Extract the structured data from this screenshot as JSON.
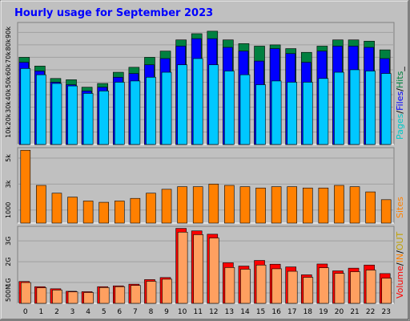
{
  "chart_data": {
    "type": "bar",
    "title": "Hourly usage for September 2023",
    "categories": [
      "0",
      "1",
      "2",
      "3",
      "4",
      "5",
      "6",
      "7",
      "8",
      "9",
      "10",
      "11",
      "12",
      "13",
      "14",
      "15",
      "16",
      "17",
      "18",
      "19",
      "20",
      "21",
      "22",
      "23"
    ],
    "panels": [
      {
        "id": "top",
        "yticks": [
          "10k",
          "20k",
          "30k",
          "40k",
          "50k",
          "60k",
          "70k",
          "80k",
          "90k"
        ],
        "ylim": [
          0,
          98000
        ],
        "legend": [
          "Pages",
          "/",
          "Files",
          "/",
          "Hits",
          "_"
        ],
        "series": [
          {
            "name": "Hits",
            "values": [
              70000,
              63000,
              53000,
              52000,
              46000,
              49000,
              58000,
              62000,
              70000,
              75000,
              84000,
              89000,
              91000,
              84000,
              81000,
              79000,
              80000,
              77000,
              74000,
              79000,
              84000,
              84000,
              83000,
              76000
            ]
          },
          {
            "name": "Files",
            "values": [
              66000,
              59000,
              50000,
              48000,
              43000,
              46000,
              54000,
              57000,
              64000,
              69000,
              79000,
              85000,
              85000,
              78000,
              75000,
              67000,
              77000,
              73000,
              66000,
              75000,
              79000,
              79000,
              78000,
              69000
            ]
          },
          {
            "name": "Pages",
            "values": [
              61000,
              56000,
              49000,
              47000,
              41000,
              43000,
              50000,
              51000,
              54000,
              58000,
              64000,
              69000,
              64000,
              59000,
              56000,
              48000,
              51000,
              50000,
              50000,
              53000,
              58000,
              60000,
              59000,
              57000
            ]
          }
        ]
      },
      {
        "id": "middle",
        "yticks": [
          "1000",
          "3k",
          "5k"
        ],
        "ylim": [
          0,
          5800
        ],
        "legend": [
          "Sites"
        ],
        "series": [
          {
            "name": "Sites",
            "values": [
              5600,
              2900,
              2300,
              2000,
              1700,
              1600,
              1700,
              1900,
              2300,
              2600,
              2800,
              2800,
              3000,
              2900,
              2800,
              2700,
              2800,
              2800,
              2700,
              2700,
              2900,
              2800,
              2400,
              1800
            ]
          }
        ]
      },
      {
        "id": "bottom",
        "yticks": [
          "500M",
          "1G",
          "2G",
          "3G"
        ],
        "ylim": [
          0,
          3700
        ],
        "legend": [
          "Volume",
          "/",
          "IN",
          "/",
          "OUT"
        ],
        "series": [
          {
            "name": "Volume",
            "values": [
              1050,
              800,
              700,
              580,
              560,
              800,
              840,
              920,
              1140,
              1240,
              3600,
              3480,
              3320,
              1950,
              1790,
              2060,
              1880,
              1750,
              1370,
              1890,
              1560,
              1690,
              1840,
              1430
            ]
          },
          {
            "name": "IN",
            "values": [
              1000,
              750,
              640,
              550,
              520,
              760,
              800,
              860,
              1060,
              1160,
              3420,
              3300,
              3140,
              1720,
              1640,
              1840,
              1660,
              1540,
              1250,
              1710,
              1440,
              1520,
              1600,
              1210
            ]
          }
        ]
      }
    ]
  },
  "colors": {
    "background": "#c0c0c0",
    "frame": "#808080",
    "title": "#0000ff",
    "hits": "#008040",
    "files": "#0000ff",
    "pages": "#00c8ff",
    "sites": "#ff8000",
    "volume": "#ff0000",
    "in": "#ffa060",
    "out": "#c0a000",
    "legend_pages": "#00c8c8",
    "legend_files": "#0000ff",
    "legend_hits": "#008040"
  }
}
